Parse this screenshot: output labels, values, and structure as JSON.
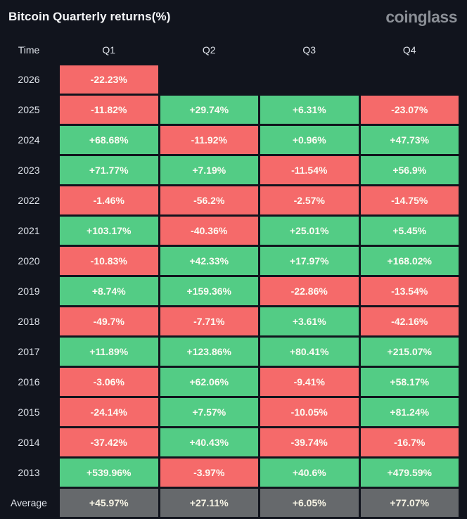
{
  "page": {
    "title": "Bitcoin Quarterly returns(%)",
    "brand": "coinglass"
  },
  "colors": {
    "background": "#11141d",
    "positive_green": "#53cc85",
    "negative_red": "#f56a6a",
    "average_gray": "#66696c",
    "cell_text": "#fdfbf3",
    "label_text": "#dfe3ea",
    "brand_text": "#8b8f96"
  },
  "table": {
    "columns": [
      "Time",
      "Q1",
      "Q2",
      "Q3",
      "Q4"
    ],
    "rows": [
      {
        "label": "2026",
        "type": "year",
        "values": [
          "-22.23%",
          null,
          null,
          null
        ]
      },
      {
        "label": "2025",
        "type": "year",
        "values": [
          "-11.82%",
          "+29.74%",
          "+6.31%",
          "-23.07%"
        ]
      },
      {
        "label": "2024",
        "type": "year",
        "values": [
          "+68.68%",
          "-11.92%",
          "+0.96%",
          "+47.73%"
        ]
      },
      {
        "label": "2023",
        "type": "year",
        "values": [
          "+71.77%",
          "+7.19%",
          "-11.54%",
          "+56.9%"
        ]
      },
      {
        "label": "2022",
        "type": "year",
        "values": [
          "-1.46%",
          "-56.2%",
          "-2.57%",
          "-14.75%"
        ]
      },
      {
        "label": "2021",
        "type": "year",
        "values": [
          "+103.17%",
          "-40.36%",
          "+25.01%",
          "+5.45%"
        ]
      },
      {
        "label": "2020",
        "type": "year",
        "values": [
          "-10.83%",
          "+42.33%",
          "+17.97%",
          "+168.02%"
        ]
      },
      {
        "label": "2019",
        "type": "year",
        "values": [
          "+8.74%",
          "+159.36%",
          "-22.86%",
          "-13.54%"
        ]
      },
      {
        "label": "2018",
        "type": "year",
        "values": [
          "-49.7%",
          "-7.71%",
          "+3.61%",
          "-42.16%"
        ]
      },
      {
        "label": "2017",
        "type": "year",
        "values": [
          "+11.89%",
          "+123.86%",
          "+80.41%",
          "+215.07%"
        ]
      },
      {
        "label": "2016",
        "type": "year",
        "values": [
          "-3.06%",
          "+62.06%",
          "-9.41%",
          "+58.17%"
        ]
      },
      {
        "label": "2015",
        "type": "year",
        "values": [
          "-24.14%",
          "+7.57%",
          "-10.05%",
          "+81.24%"
        ]
      },
      {
        "label": "2014",
        "type": "year",
        "values": [
          "-37.42%",
          "+40.43%",
          "-39.74%",
          "-16.7%"
        ]
      },
      {
        "label": "2013",
        "type": "year",
        "values": [
          "+539.96%",
          "-3.97%",
          "+40.6%",
          "+479.59%"
        ]
      },
      {
        "label": "Average",
        "type": "average",
        "values": [
          "+45.97%",
          "+27.11%",
          "+6.05%",
          "+77.07%"
        ]
      }
    ]
  },
  "chart_data": {
    "type": "heatmap",
    "title": "Bitcoin Quarterly returns(%)",
    "columns": [
      "Q1",
      "Q2",
      "Q3",
      "Q4"
    ],
    "rows": [
      "2026",
      "2025",
      "2024",
      "2023",
      "2022",
      "2021",
      "2020",
      "2019",
      "2018",
      "2017",
      "2016",
      "2015",
      "2014",
      "2013",
      "Average"
    ],
    "values": [
      [
        -22.23,
        null,
        null,
        null
      ],
      [
        -11.82,
        29.74,
        6.31,
        -23.07
      ],
      [
        68.68,
        -11.92,
        0.96,
        47.73
      ],
      [
        71.77,
        7.19,
        -11.54,
        56.9
      ],
      [
        -1.46,
        -56.2,
        -2.57,
        -14.75
      ],
      [
        103.17,
        -40.36,
        25.01,
        5.45
      ],
      [
        -10.83,
        42.33,
        17.97,
        168.02
      ],
      [
        8.74,
        159.36,
        -22.86,
        -13.54
      ],
      [
        -49.7,
        -7.71,
        3.61,
        -42.16
      ],
      [
        11.89,
        123.86,
        80.41,
        215.07
      ],
      [
        -3.06,
        62.06,
        -9.41,
        58.17
      ],
      [
        -24.14,
        7.57,
        -10.05,
        81.24
      ],
      [
        -37.42,
        40.43,
        -39.74,
        -16.7
      ],
      [
        539.96,
        -3.97,
        40.6,
        479.59
      ],
      [
        45.97,
        27.11,
        6.05,
        77.07
      ]
    ],
    "legend": "green = positive return, red = negative return, gray = average row",
    "unit": "%"
  }
}
